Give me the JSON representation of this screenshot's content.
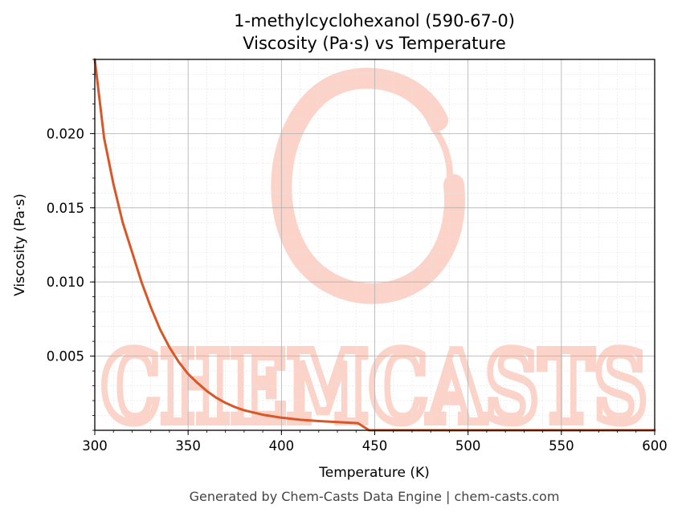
{
  "chart_data": {
    "type": "line",
    "title": "1-methylcyclohexanol (590-67-0)",
    "subtitle": "Viscosity (Pa·s) vs Temperature",
    "xlabel": "Temperature (K)",
    "ylabel": "Viscosity (Pa·s)",
    "xlim": [
      300,
      600
    ],
    "ylim": [
      0,
      0.025
    ],
    "x_ticks": [
      300,
      350,
      400,
      450,
      500,
      550,
      600
    ],
    "x_tick_labels": [
      "300",
      "350",
      "400",
      "450",
      "500",
      "550",
      "600"
    ],
    "y_ticks": [
      0.005,
      0.01,
      0.015,
      0.02
    ],
    "y_tick_labels": [
      "0.005",
      "0.010",
      "0.015",
      "0.020"
    ],
    "grid": true,
    "series": [
      {
        "color": "#d95726",
        "x": [
          300,
          305,
          310,
          315,
          320,
          325,
          330,
          335,
          340,
          345,
          350,
          355,
          360,
          365,
          370,
          375,
          380,
          390,
          400,
          410,
          420,
          430,
          441,
          447,
          450,
          460,
          480,
          500,
          520,
          540,
          560,
          580,
          600
        ],
        "y": [
          0.025,
          0.0197,
          0.0166,
          0.014,
          0.012,
          0.01,
          0.0083,
          0.0068,
          0.0056,
          0.0046,
          0.0038,
          0.0032,
          0.00265,
          0.0022,
          0.00185,
          0.00157,
          0.00135,
          0.00105,
          0.00085,
          0.00071,
          0.00062,
          0.00055,
          0.00048,
          0.0,
          0.0,
          0.0,
          0.0,
          0.0,
          0.0,
          0.0,
          0.0,
          0.0,
          0.0
        ]
      }
    ]
  },
  "watermark": {
    "text": "CHEMCASTS",
    "color": "#fbd3c9"
  },
  "footer": {
    "text": "Generated by Chem-Casts Data Engine | chem-casts.com"
  }
}
